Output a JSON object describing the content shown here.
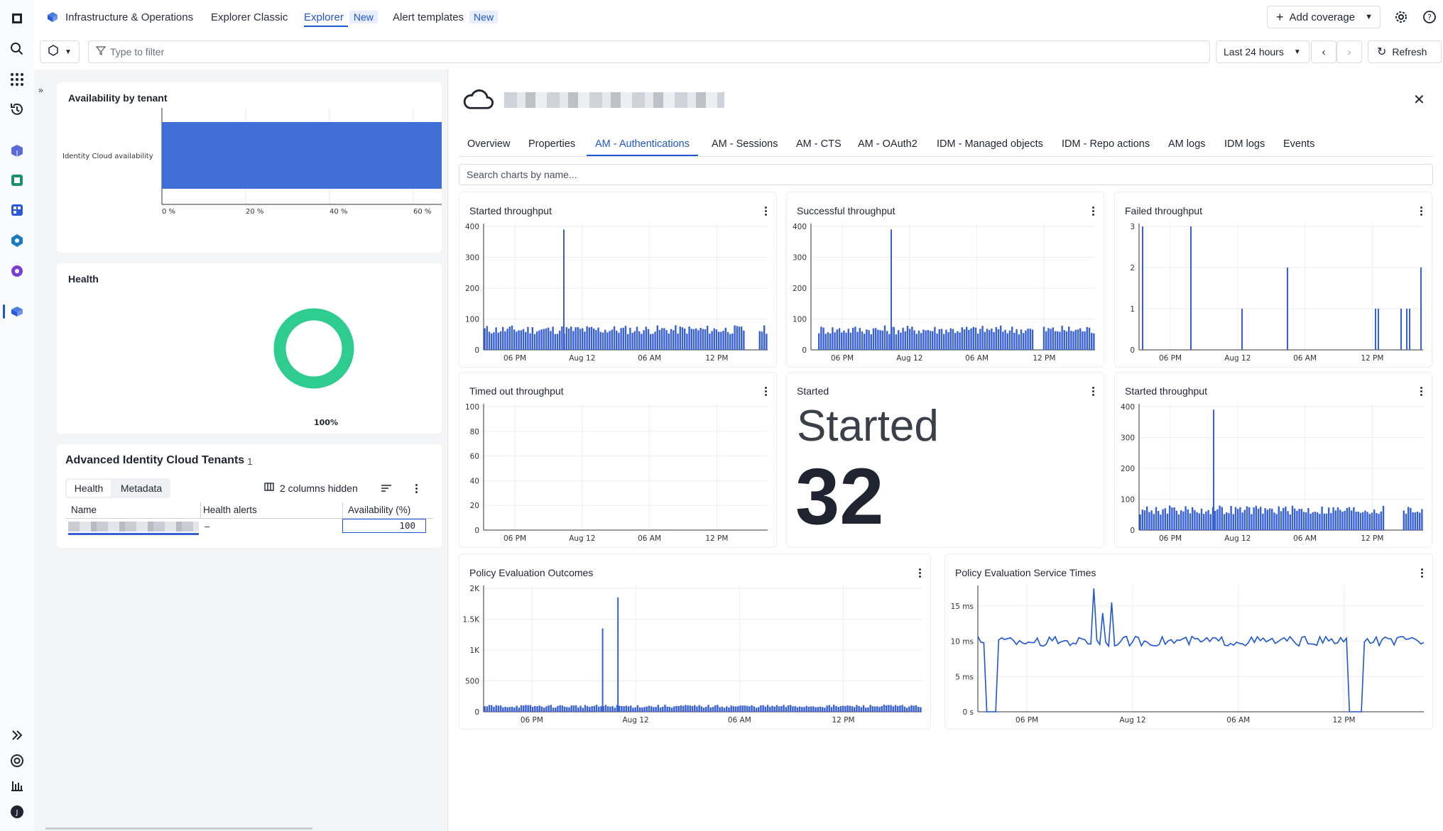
{
  "nav": {
    "breadcrumb_app": "Infrastructure & Operations",
    "tabs": [
      {
        "label": "Explorer Classic",
        "badge": ""
      },
      {
        "label": "Explorer",
        "badge": "New"
      },
      {
        "label": "Alert templates",
        "badge": "New"
      }
    ],
    "add_coverage": "Add coverage"
  },
  "filterbar": {
    "placeholder": "Type to filter",
    "timeframe": "Last 24 hours",
    "refresh": "Refresh"
  },
  "left": {
    "availability_title": "Availability by tenant",
    "availability_category": "Identity Cloud availability",
    "availability_ticks": [
      "0 %",
      "20 %",
      "40 %",
      "60 %"
    ],
    "availability_value_pct": 100,
    "health_title": "Health",
    "health_pct_label": "100%",
    "health_value": 1.0,
    "table_title": "Advanced Identity Cloud Tenants",
    "table_count": "1",
    "table_tabs": [
      "Health",
      "Metadata"
    ],
    "columns_hidden": "2 columns hidden",
    "columns": [
      "Name",
      "Health alerts",
      "Availability (%)"
    ],
    "row": {
      "health_alerts": "–",
      "availability": "100"
    }
  },
  "panel": {
    "tabs": [
      "Overview",
      "Properties",
      "AM - Authentications",
      "AM - Sessions",
      "AM - CTS",
      "AM - OAuth2",
      "IDM - Managed objects",
      "IDM - Repo actions",
      "AM logs",
      "IDM logs",
      "Events"
    ],
    "search_placeholder": "Search charts by name...",
    "single_value_title": "Started",
    "single_value_label": "Started",
    "single_value": "32"
  },
  "chart_data": [
    {
      "type": "bar",
      "title": "Started throughput",
      "x_ticks": [
        "06 PM",
        "Aug 12",
        "06 AM",
        "12 PM"
      ],
      "y_ticks": [
        "0",
        "100",
        "200",
        "300",
        "400"
      ],
      "ylim": [
        0,
        400
      ],
      "baseline": 65,
      "baseline_variation": 15,
      "spikes": [
        {
          "position": 0.28,
          "value": 390
        }
      ],
      "gaps": [
        [
          0.92,
          0.96
        ]
      ],
      "color": "#3760d8"
    },
    {
      "type": "bar",
      "title": "Successful throughput",
      "x_ticks": [
        "06 PM",
        "Aug 12",
        "06 AM",
        "12 PM"
      ],
      "y_ticks": [
        "0",
        "100",
        "200",
        "300",
        "400"
      ],
      "ylim": [
        0,
        400
      ],
      "baseline": 65,
      "baseline_variation": 15,
      "spikes": [
        {
          "position": 0.28,
          "value": 390
        }
      ],
      "gaps": [
        [
          0.0,
          0.02
        ],
        [
          0.78,
          0.81
        ]
      ],
      "color": "#3760d8"
    },
    {
      "type": "bar",
      "title": "Failed throughput",
      "x_ticks": [
        "06 PM",
        "Aug 12",
        "06 AM",
        "12 PM"
      ],
      "y_ticks": [
        "0",
        "1",
        "2",
        "3"
      ],
      "ylim": [
        0,
        3
      ],
      "baseline": 0,
      "baseline_variation": 0,
      "spikes": [
        {
          "position": 0.01,
          "value": 3
        },
        {
          "position": 0.18,
          "value": 3
        },
        {
          "position": 0.36,
          "value": 1
        },
        {
          "position": 0.52,
          "value": 2
        },
        {
          "position": 0.83,
          "value": 1
        },
        {
          "position": 0.84,
          "value": 1
        },
        {
          "position": 0.92,
          "value": 1
        },
        {
          "position": 0.94,
          "value": 1
        },
        {
          "position": 0.95,
          "value": 1
        },
        {
          "position": 0.99,
          "value": 2
        }
      ],
      "gaps": [],
      "color": "#3760d8"
    },
    {
      "type": "bar",
      "title": "Timed out throughput",
      "x_ticks": [
        "06 PM",
        "Aug 12",
        "06 AM",
        "12 PM"
      ],
      "y_ticks": [
        "0",
        "20",
        "40",
        "60",
        "80",
        "100"
      ],
      "ylim": [
        0,
        100
      ],
      "baseline": 0,
      "baseline_variation": 0,
      "spikes": [],
      "gaps": [],
      "color": "#3760d8"
    },
    {
      "type": "bar",
      "title": "Started throughput",
      "x_ticks": [
        "06 PM",
        "Aug 12",
        "06 AM",
        "12 PM"
      ],
      "y_ticks": [
        "0",
        "100",
        "200",
        "300",
        "400"
      ],
      "ylim": [
        0,
        400
      ],
      "baseline": 65,
      "baseline_variation": 15,
      "spikes": [
        {
          "position": 0.26,
          "value": 390
        }
      ],
      "gaps": [
        [
          0.86,
          0.92
        ]
      ],
      "color": "#3760d8"
    },
    {
      "type": "bar",
      "title": "Policy Evaluation Outcomes",
      "x_ticks": [
        "06 PM",
        "Aug 12",
        "06 AM",
        "12 PM"
      ],
      "y_ticks": [
        "0",
        "500",
        "1K",
        "1.5K",
        "2K"
      ],
      "ylim": [
        0,
        2000
      ],
      "baseline": 90,
      "baseline_variation": 25,
      "spikes": [
        {
          "position": 0.27,
          "value": 1350
        },
        {
          "position": 0.305,
          "value": 1850
        }
      ],
      "gaps": [],
      "color": "#3760d8"
    },
    {
      "type": "line",
      "title": "Policy Evaluation Service Times",
      "x_ticks": [
        "06 PM",
        "Aug 12",
        "06 AM",
        "12 PM"
      ],
      "y_ticks": [
        "0 s",
        "5 ms",
        "10 ms",
        "15 ms"
      ],
      "ylim": [
        0,
        17.5
      ],
      "baseline": 10,
      "baseline_variation": 0.7,
      "spikes": [
        {
          "position": 0.26,
          "value": 17.5
        },
        {
          "position": 0.28,
          "value": 14
        },
        {
          "position": 0.3,
          "value": 15.5
        }
      ],
      "drops": [
        [
          0.02,
          0.04
        ],
        [
          0.83,
          0.86
        ]
      ],
      "color": "#1e55d0"
    }
  ]
}
